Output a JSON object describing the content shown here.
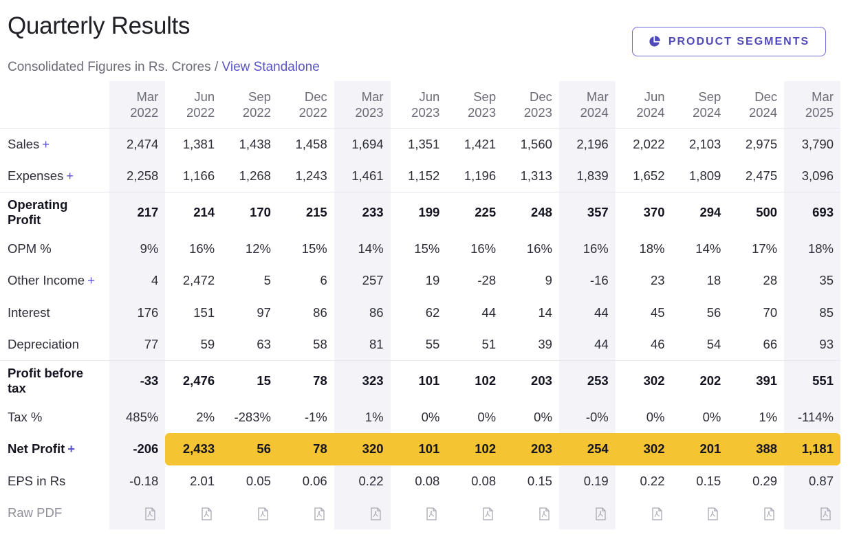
{
  "header": {
    "title": "Quarterly Results",
    "subtitle_prefix": "Consolidated Figures in Rs. Crores / ",
    "standalone_link": "View Standalone"
  },
  "segments_button": {
    "label": "PRODUCT SEGMENTS",
    "icon": "pie-chart-icon"
  },
  "periods": [
    {
      "month": "Mar",
      "year": "2022"
    },
    {
      "month": "Jun",
      "year": "2022"
    },
    {
      "month": "Sep",
      "year": "2022"
    },
    {
      "month": "Dec",
      "year": "2022"
    },
    {
      "month": "Mar",
      "year": "2023"
    },
    {
      "month": "Jun",
      "year": "2023"
    },
    {
      "month": "Sep",
      "year": "2023"
    },
    {
      "month": "Dec",
      "year": "2023"
    },
    {
      "month": "Mar",
      "year": "2024"
    },
    {
      "month": "Jun",
      "year": "2024"
    },
    {
      "month": "Sep",
      "year": "2024"
    },
    {
      "month": "Dec",
      "year": "2024"
    },
    {
      "month": "Mar",
      "year": "2025"
    }
  ],
  "rows": [
    {
      "key": "sales",
      "label": "Sales",
      "expandable": true,
      "strong": false,
      "tall": false,
      "sep": false,
      "values": [
        "2,474",
        "1,381",
        "1,438",
        "1,458",
        "1,694",
        "1,351",
        "1,421",
        "1,560",
        "2,196",
        "2,022",
        "2,103",
        "2,975",
        "3,790"
      ]
    },
    {
      "key": "expenses",
      "label": "Expenses",
      "expandable": true,
      "strong": false,
      "tall": false,
      "sep": false,
      "values": [
        "2,258",
        "1,166",
        "1,268",
        "1,243",
        "1,461",
        "1,152",
        "1,196",
        "1,313",
        "1,839",
        "1,652",
        "1,809",
        "2,475",
        "3,096"
      ]
    },
    {
      "key": "operating-profit",
      "label": "Operating Profit",
      "expandable": false,
      "strong": true,
      "tall": true,
      "sep": true,
      "values": [
        "217",
        "214",
        "170",
        "215",
        "233",
        "199",
        "225",
        "248",
        "357",
        "370",
        "294",
        "500",
        "693"
      ]
    },
    {
      "key": "opm",
      "label": "OPM %",
      "expandable": false,
      "strong": false,
      "tall": false,
      "sep": false,
      "values": [
        "9%",
        "16%",
        "12%",
        "15%",
        "14%",
        "15%",
        "16%",
        "16%",
        "16%",
        "18%",
        "14%",
        "17%",
        "18%"
      ]
    },
    {
      "key": "other-income",
      "label": "Other Income",
      "expandable": true,
      "strong": false,
      "tall": false,
      "sep": false,
      "values": [
        "4",
        "2,472",
        "5",
        "6",
        "257",
        "19",
        "-28",
        "9",
        "-16",
        "23",
        "18",
        "28",
        "35"
      ]
    },
    {
      "key": "interest",
      "label": "Interest",
      "expandable": false,
      "strong": false,
      "tall": false,
      "sep": false,
      "values": [
        "176",
        "151",
        "97",
        "86",
        "86",
        "62",
        "44",
        "14",
        "44",
        "45",
        "56",
        "70",
        "85"
      ]
    },
    {
      "key": "depreciation",
      "label": "Depreciation",
      "expandable": false,
      "strong": false,
      "tall": false,
      "sep": false,
      "values": [
        "77",
        "59",
        "63",
        "58",
        "81",
        "55",
        "51",
        "39",
        "44",
        "46",
        "54",
        "66",
        "93"
      ]
    },
    {
      "key": "profit-before-tax",
      "label": "Profit before tax",
      "expandable": false,
      "strong": true,
      "tall": true,
      "sep": true,
      "values": [
        "-33",
        "2,476",
        "15",
        "78",
        "323",
        "101",
        "102",
        "203",
        "253",
        "302",
        "202",
        "391",
        "551"
      ]
    },
    {
      "key": "tax",
      "label": "Tax %",
      "expandable": false,
      "strong": false,
      "tall": false,
      "sep": false,
      "values": [
        "485%",
        "2%",
        "-283%",
        "-1%",
        "1%",
        "0%",
        "0%",
        "0%",
        "-0%",
        "0%",
        "0%",
        "1%",
        "-114%"
      ]
    },
    {
      "key": "net-profit",
      "label": "Net Profit",
      "expandable": true,
      "strong": true,
      "tall": false,
      "sep": false,
      "highlight_from": 1,
      "values": [
        "-206",
        "2,433",
        "56",
        "78",
        "320",
        "101",
        "102",
        "203",
        "254",
        "302",
        "201",
        "388",
        "1,181"
      ]
    },
    {
      "key": "eps",
      "label": "EPS in Rs",
      "expandable": false,
      "strong": false,
      "tall": false,
      "sep": false,
      "values": [
        "-0.18",
        "2.01",
        "0.05",
        "0.06",
        "0.22",
        "0.08",
        "0.08",
        "0.15",
        "0.19",
        "0.22",
        "0.15",
        "0.29",
        "0.87"
      ]
    }
  ],
  "raw_pdf": {
    "label": "Raw PDF",
    "icon": "pdf-file-icon"
  },
  "colors": {
    "accent": "#5a55c8",
    "highlight": "#f4c433",
    "shade": "#f3f3f8"
  }
}
